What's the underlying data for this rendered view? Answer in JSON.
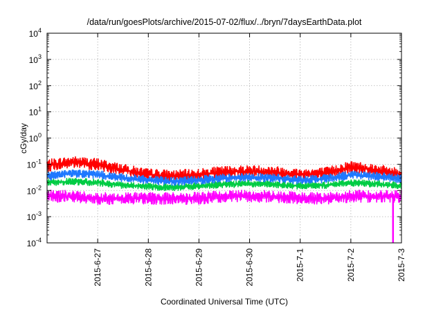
{
  "chart_data": {
    "type": "line",
    "title": "/data/run/goesPlots/archive/2015-07-02/flux/../bryn/7daysEarthData.plot",
    "xlabel": "Coordinated Universal Time (UTC)",
    "ylabel": "cGy/day",
    "yscale": "log",
    "ylim": [
      0.0001,
      10000
    ],
    "y_ticks": [
      {
        "base": "10",
        "exp": "-4"
      },
      {
        "base": "10",
        "exp": "-3"
      },
      {
        "base": "10",
        "exp": "-2"
      },
      {
        "base": "10",
        "exp": "-1"
      },
      {
        "base": "10",
        "exp": "0"
      },
      {
        "base": "10",
        "exp": "1"
      },
      {
        "base": "10",
        "exp": "2"
      },
      {
        "base": "10",
        "exp": "3"
      },
      {
        "base": "10",
        "exp": "4"
      }
    ],
    "x_range": [
      "2015-06-26 00:00",
      "2015-07-03 00:00"
    ],
    "x_tick_labels": [
      "2015-6-27",
      "2015-6-28",
      "2015-6-29",
      "2015-6-30",
      "2015-7-1",
      "2015-7-2",
      "2015-7-3"
    ],
    "grid": true,
    "series": [
      {
        "color": "#ff0000",
        "x": [
          "2015-06-26 00:00",
          "2015-06-26 12:00",
          "2015-06-27 00:00",
          "2015-06-27 12:00",
          "2015-06-28 00:00",
          "2015-06-28 12:00",
          "2015-06-29 00:00",
          "2015-06-29 12:00",
          "2015-06-30 00:00",
          "2015-06-30 12:00",
          "2015-07-01 00:00",
          "2015-07-01 12:00",
          "2015-07-02 00:00",
          "2015-07-02 12:00",
          "2015-07-03 00:00"
        ],
        "values": [
          0.09,
          0.12,
          0.1,
          0.06,
          0.04,
          0.035,
          0.04,
          0.05,
          0.055,
          0.05,
          0.04,
          0.045,
          0.08,
          0.06,
          0.04
        ]
      },
      {
        "color": "#00cc44",
        "x": [
          "2015-06-26 00:00",
          "2015-06-26 12:00",
          "2015-06-27 00:00",
          "2015-06-27 12:00",
          "2015-06-28 00:00",
          "2015-06-28 12:00",
          "2015-06-29 00:00",
          "2015-06-29 12:00",
          "2015-06-30 00:00",
          "2015-06-30 12:00",
          "2015-07-01 00:00",
          "2015-07-01 12:00",
          "2015-07-02 00:00",
          "2015-07-02 12:00",
          "2015-07-03 00:00"
        ],
        "values": [
          0.02,
          0.022,
          0.02,
          0.016,
          0.014,
          0.013,
          0.015,
          0.017,
          0.018,
          0.017,
          0.015,
          0.016,
          0.02,
          0.018,
          0.015
        ]
      },
      {
        "color": "#1e78ff",
        "x": [
          "2015-06-26 00:00",
          "2015-06-26 12:00",
          "2015-06-27 00:00",
          "2015-06-27 12:00",
          "2015-06-28 00:00",
          "2015-06-28 12:00",
          "2015-06-29 00:00",
          "2015-06-29 12:00",
          "2015-06-30 00:00",
          "2015-06-30 12:00",
          "2015-07-01 00:00",
          "2015-07-01 12:00",
          "2015-07-02 00:00",
          "2015-07-02 12:00",
          "2015-07-03 00:00"
        ],
        "values": [
          0.035,
          0.045,
          0.04,
          0.03,
          0.025,
          0.022,
          0.025,
          0.03,
          0.032,
          0.03,
          0.025,
          0.028,
          0.04,
          0.035,
          0.028
        ]
      },
      {
        "color": "#ff00ff",
        "x": [
          "2015-06-26 00:00",
          "2015-06-26 12:00",
          "2015-06-27 00:00",
          "2015-06-27 12:00",
          "2015-06-28 00:00",
          "2015-06-28 12:00",
          "2015-06-29 00:00",
          "2015-06-29 12:00",
          "2015-06-30 00:00",
          "2015-06-30 12:00",
          "2015-07-01 00:00",
          "2015-07-01 12:00",
          "2015-07-02 00:00",
          "2015-07-02 12:00",
          "2015-07-03 00:00"
        ],
        "values": [
          0.006,
          0.006,
          0.005,
          0.005,
          0.005,
          0.005,
          0.005,
          0.006,
          0.006,
          0.006,
          0.005,
          0.005,
          0.006,
          0.006,
          0.006
        ]
      }
    ],
    "annotations": [
      {
        "series_color": "#ff00ff",
        "x": "2015-07-02 20:00",
        "value": 0.0001,
        "note": "dropout"
      }
    ]
  }
}
